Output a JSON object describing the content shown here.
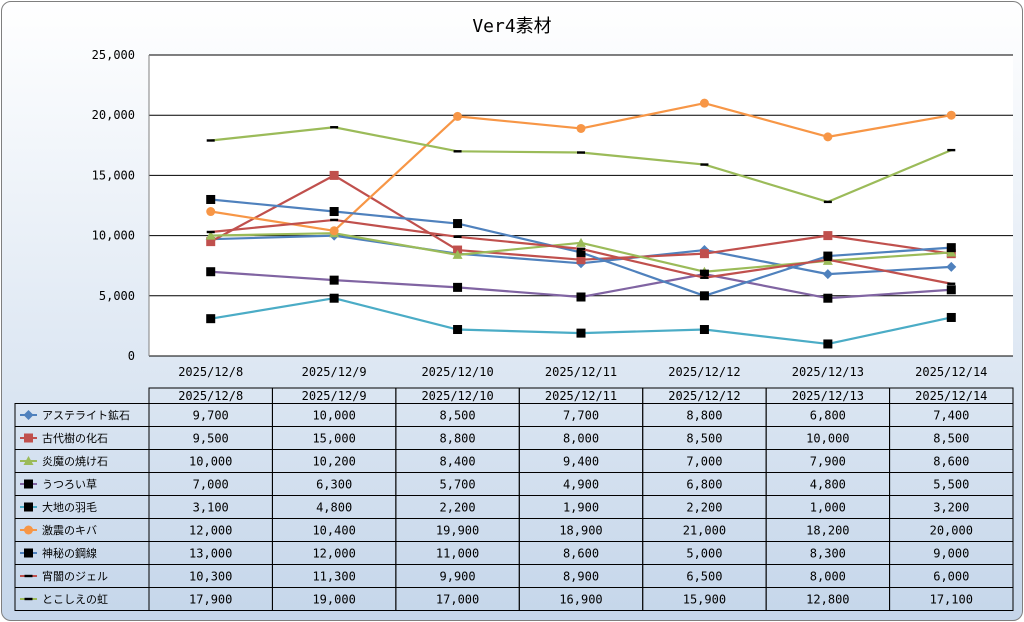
{
  "chart_data": {
    "type": "line",
    "title": "Ver4素材",
    "categories": [
      "2025/12/8",
      "2025/12/9",
      "2025/12/10",
      "2025/12/11",
      "2025/12/12",
      "2025/12/13",
      "2025/12/14"
    ],
    "ylim": [
      0,
      25000
    ],
    "yticks": [
      0,
      5000,
      10000,
      15000,
      20000,
      25000
    ],
    "ytick_labels": [
      "0",
      "5,000",
      "10,000",
      "15,000",
      "20,000",
      "25,000"
    ],
    "grid": "horizontal",
    "data_table": true,
    "series": [
      {
        "name": "アステライト鉱石",
        "color": "#4f81bd",
        "marker": "diamond",
        "values": [
          9700,
          10000,
          8500,
          7700,
          8800,
          6800,
          7400
        ],
        "labels": [
          "9,700",
          "10,000",
          "8,500",
          "7,700",
          "8,800",
          "6,800",
          "7,400"
        ]
      },
      {
        "name": "古代樹の化石",
        "color": "#c0504d",
        "marker": "square",
        "values": [
          9500,
          15000,
          8800,
          8000,
          8500,
          10000,
          8500
        ],
        "labels": [
          "9,500",
          "15,000",
          "8,800",
          "8,000",
          "8,500",
          "10,000",
          "8,500"
        ]
      },
      {
        "name": "炎魔の焼け石",
        "color": "#9bbb59",
        "marker": "triangle",
        "values": [
          10000,
          10200,
          8400,
          9400,
          7000,
          7900,
          8600
        ],
        "labels": [
          "10,000",
          "10,200",
          "8,400",
          "9,400",
          "7,000",
          "7,900",
          "8,600"
        ]
      },
      {
        "name": "うつろい草",
        "color": "#8064a2",
        "marker": "black-square",
        "values": [
          7000,
          6300,
          5700,
          4900,
          6800,
          4800,
          5500
        ],
        "labels": [
          "7,000",
          "6,300",
          "5,700",
          "4,900",
          "6,800",
          "4,800",
          "5,500"
        ]
      },
      {
        "name": "大地の羽毛",
        "color": "#4bacc6",
        "marker": "black-square",
        "values": [
          3100,
          4800,
          2200,
          1900,
          2200,
          1000,
          3200
        ],
        "labels": [
          "3,100",
          "4,800",
          "2,200",
          "1,900",
          "2,200",
          "1,000",
          "3,200"
        ]
      },
      {
        "name": "激震のキバ",
        "color": "#f79646",
        "marker": "circle",
        "values": [
          12000,
          10400,
          19900,
          18900,
          21000,
          18200,
          20000
        ],
        "labels": [
          "12,000",
          "10,400",
          "19,900",
          "18,900",
          "21,000",
          "18,200",
          "20,000"
        ]
      },
      {
        "name": "神秘の鋼線",
        "color": "#4f81bd",
        "marker": "black-square",
        "values": [
          13000,
          12000,
          11000,
          8600,
          5000,
          8300,
          9000
        ],
        "labels": [
          "13,000",
          "12,000",
          "11,000",
          "8,600",
          "5,000",
          "8,300",
          "9,000"
        ]
      },
      {
        "name": "宵闇のジェル",
        "color": "#c0504d",
        "marker": "dash",
        "values": [
          10300,
          11300,
          9900,
          8900,
          6500,
          8000,
          6000
        ],
        "labels": [
          "10,300",
          "11,300",
          "9,900",
          "8,900",
          "6,500",
          "8,000",
          "6,000"
        ]
      },
      {
        "name": "とこしえの虹",
        "color": "#9bbb59",
        "marker": "dash",
        "values": [
          17900,
          19000,
          17000,
          16900,
          15900,
          12800,
          17100
        ],
        "labels": [
          "17,900",
          "19,000",
          "17,000",
          "16,900",
          "15,900",
          "12,800",
          "17,100"
        ]
      }
    ]
  }
}
